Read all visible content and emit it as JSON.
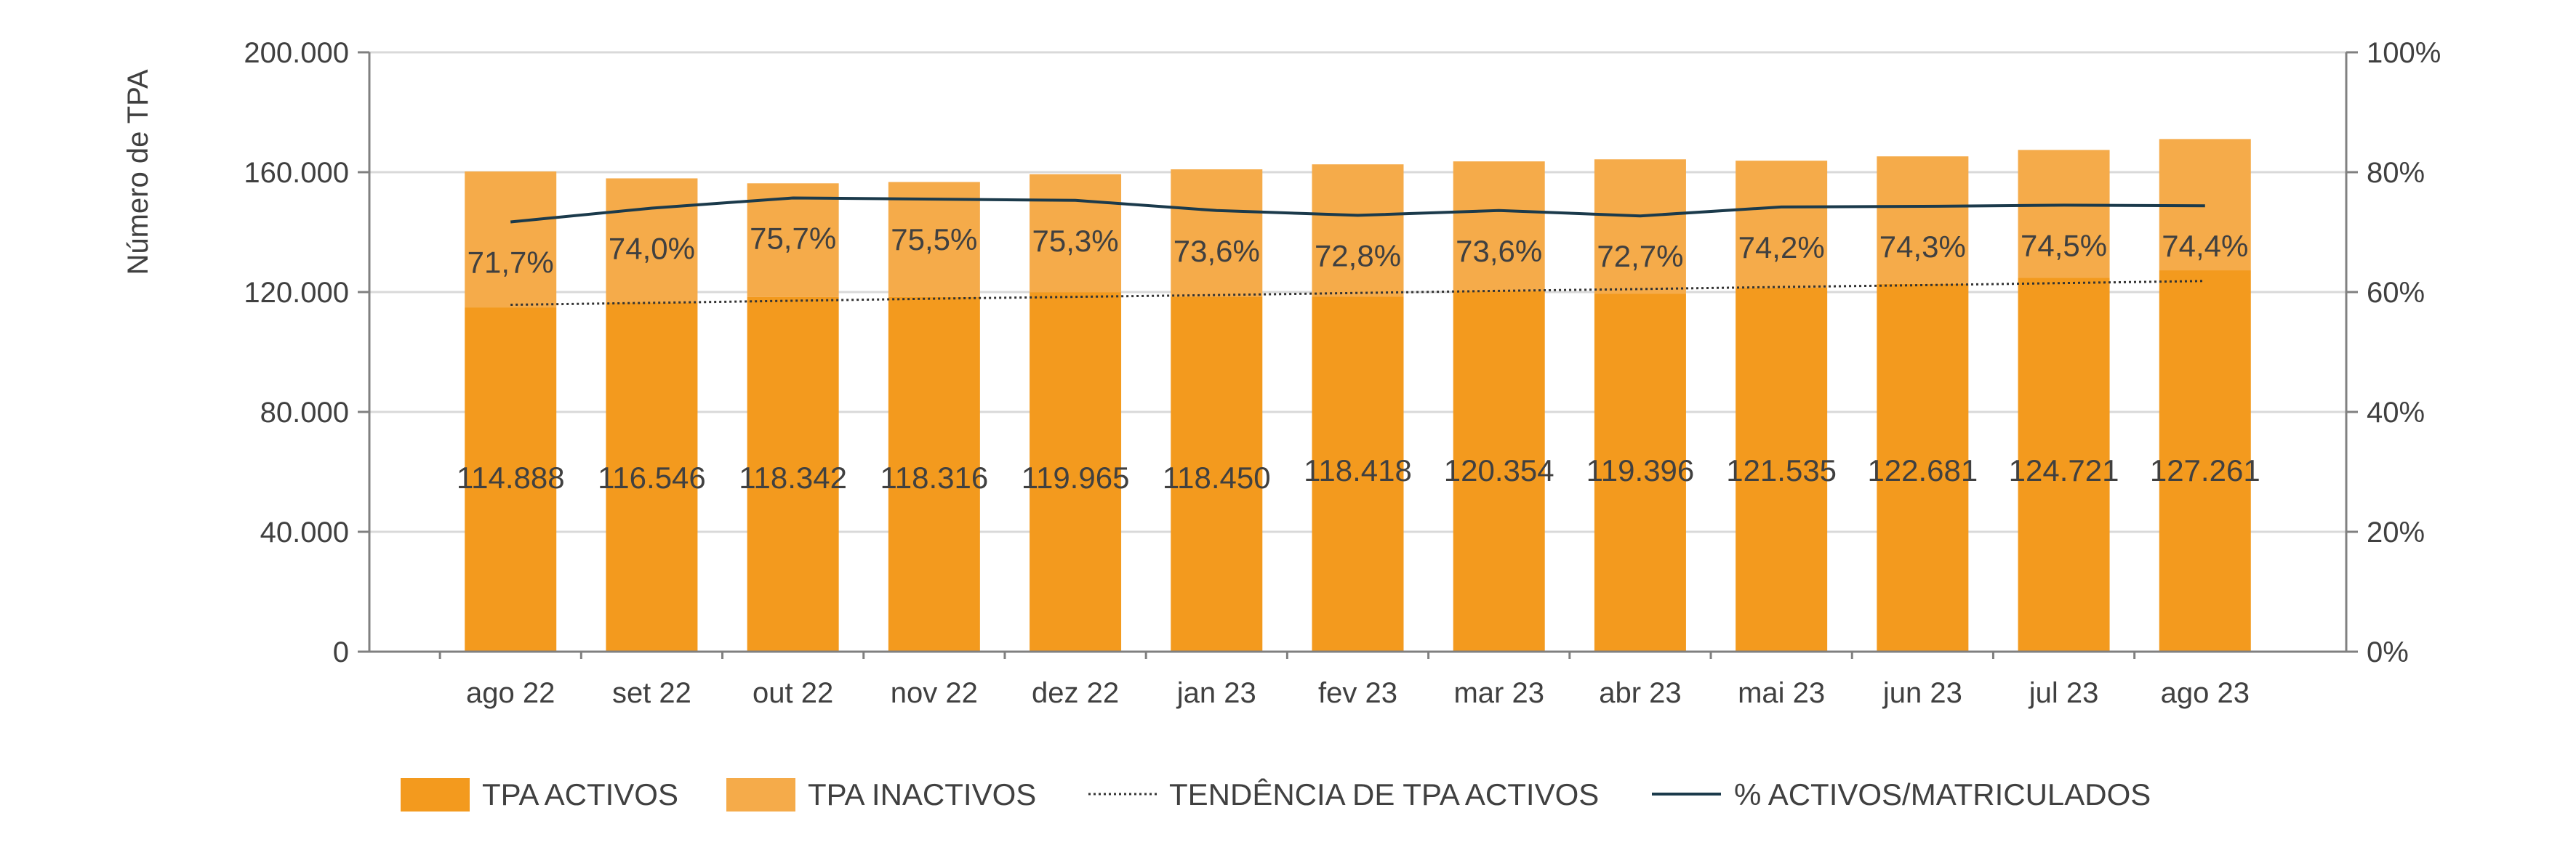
{
  "chart_data": {
    "type": "bar",
    "categories": [
      "ago 22",
      "set 22",
      "out 22",
      "nov 22",
      "dez 22",
      "jan 23",
      "fev 23",
      "mar 23",
      "abr 23",
      "mai 23",
      "jun 23",
      "jul 23",
      "ago 23"
    ],
    "series": [
      {
        "name": "TPA ACTIVOS",
        "kind": "bar-stacked",
        "values": [
          114888,
          116546,
          118342,
          118316,
          119965,
          118450,
          118418,
          120354,
          119396,
          121535,
          122681,
          124721,
          127261
        ],
        "labels": [
          "114.888",
          "116.546",
          "118.342",
          "118.316",
          "119.965",
          "118.450",
          "118.418",
          "120.354",
          "119.396",
          "121.535",
          "122.681",
          "124.721",
          "127.261"
        ],
        "color": "#F39A1E"
      },
      {
        "name": "TPA INACTIVOS",
        "kind": "bar-stacked",
        "values": [
          45350,
          41400,
          37950,
          38400,
          39350,
          42500,
          44200,
          43250,
          44900,
          42300,
          42600,
          42700,
          43800
        ],
        "color": "#F5AB4A"
      },
      {
        "name": "TENDÊNCIA DE TPA ACTIVOS",
        "kind": "trend-line",
        "values": [
          115750,
          116400,
          117100,
          117800,
          118400,
          119000,
          119700,
          120400,
          121000,
          121700,
          122300,
          123000,
          123700
        ],
        "color": "#333333"
      },
      {
        "name": "% ACTIVOS/MATRICULADOS",
        "kind": "line",
        "axis": "right",
        "values": [
          71.7,
          74.0,
          75.7,
          75.5,
          75.3,
          73.6,
          72.8,
          73.6,
          72.7,
          74.2,
          74.3,
          74.5,
          74.4
        ],
        "labels": [
          "71,7%",
          "74,0%",
          "75,7%",
          "75,5%",
          "75,3%",
          "73,6%",
          "72,8%",
          "73,6%",
          "72,7%",
          "74,2%",
          "74,3%",
          "74,5%",
          "74,4%"
        ],
        "color": "#1B3A4B"
      }
    ],
    "ylabel": "Número de TPA",
    "ylim": [
      0,
      200000
    ],
    "y_ticks": [
      "0",
      "40.000",
      "80.000",
      "120.000",
      "160.000",
      "200.000"
    ],
    "y2lim": [
      0,
      100
    ],
    "y2_ticks": [
      "0%",
      "20%",
      "40%",
      "60%",
      "80%",
      "100%"
    ],
    "grid": true,
    "legend_position": "bottom"
  }
}
